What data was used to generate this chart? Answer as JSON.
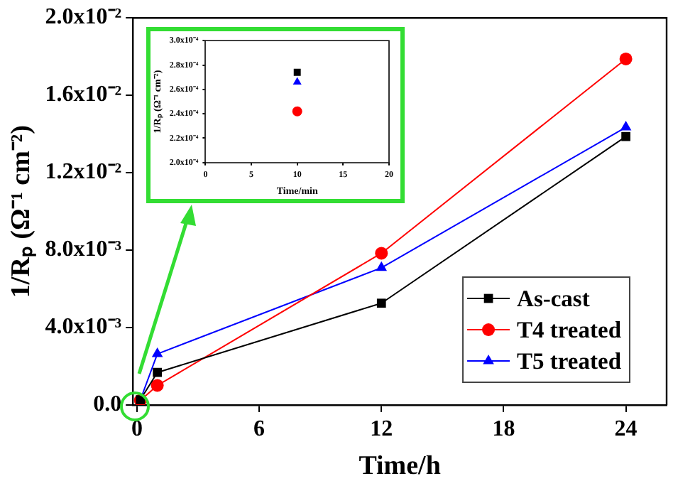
{
  "chart_data": [
    {
      "type": "line",
      "xlabel": "Time/h",
      "ylabel": "1/Rₚ (Ω⁻¹ cm⁻²)",
      "x": [
        0.167,
        1,
        12,
        24
      ],
      "series": [
        {
          "name": "As-cast",
          "color": "#000000",
          "marker": "square",
          "values": [
            0.000274,
            0.00168,
            0.00526,
            0.01387
          ]
        },
        {
          "name": "T4 treated",
          "color": "#ff0000",
          "marker": "circle",
          "values": [
            0.000242,
            0.00101,
            0.00784,
            0.01788
          ]
        },
        {
          "name": "T5 treated",
          "color": "#0000ff",
          "marker": "triangle",
          "values": [
            0.000266,
            0.00264,
            0.00709,
            0.01435
          ]
        }
      ],
      "xlim": [
        -0.2,
        26
      ],
      "xticks": [
        0,
        6,
        12,
        18,
        24
      ],
      "ylim": [
        0,
        0.02
      ],
      "yticks": [
        {
          "value": 0,
          "label": "0.0"
        },
        {
          "value": 0.004,
          "label": "4.0x10⁻³"
        },
        {
          "value": 0.008,
          "label": "8.0x10⁻³"
        },
        {
          "value": 0.012,
          "label": "1.2x10⁻²"
        },
        {
          "value": 0.016,
          "label": "1.6x10⁻²"
        },
        {
          "value": 0.02,
          "label": "2.0x10⁻²"
        }
      ],
      "grid": false,
      "legend": "bottom right"
    },
    {
      "type": "scatter",
      "xlabel": "Time/min",
      "ylabel": "1/Rₚ (Ω⁻¹ cm⁻²)",
      "x": [
        10
      ],
      "series": [
        {
          "color": "#000000",
          "marker": "square",
          "values": [
            0.000274
          ]
        },
        {
          "color": "#ff0000",
          "marker": "circle",
          "values": [
            0.000242
          ]
        },
        {
          "color": "#0000ff",
          "marker": "triangle",
          "values": [
            0.000266
          ]
        }
      ],
      "xlim": [
        0,
        20
      ],
      "xticks": [
        0,
        5,
        10,
        15,
        20
      ],
      "ylim": [
        0.0002,
        0.0003
      ],
      "yticks": [
        {
          "value": 0.0002,
          "label": "2.0x10⁻⁴"
        },
        {
          "value": 0.00022,
          "label": "2.2x10⁻⁴"
        },
        {
          "value": 0.00024,
          "label": "2.4x10⁻⁴"
        },
        {
          "value": 0.00026,
          "label": "2.6x10⁻⁴"
        },
        {
          "value": 0.00028,
          "label": "2.8x10⁻⁴"
        },
        {
          "value": 0.0003,
          "label": "3.0x10⁻⁴"
        }
      ],
      "grid": false
    }
  ]
}
